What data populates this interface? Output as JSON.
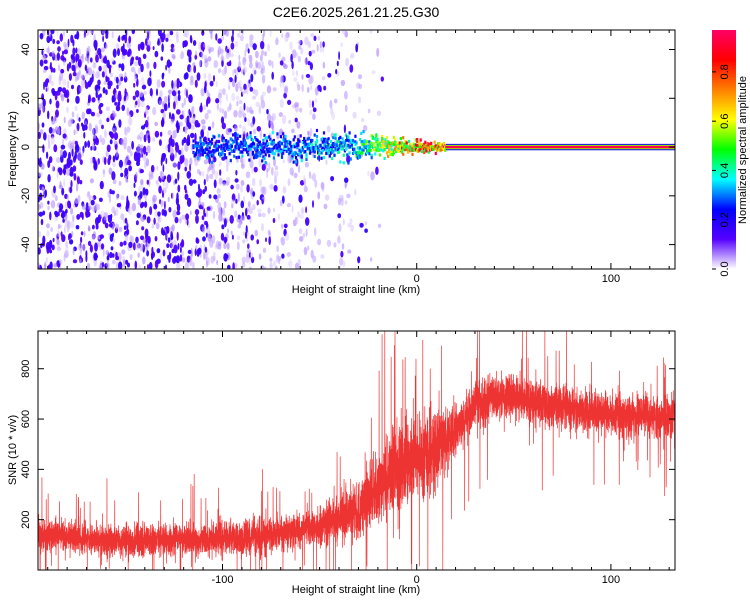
{
  "figure_title": "C2E6.2025.261.21.25.G30",
  "chart_data": [
    {
      "type": "heatmap",
      "title": "C2E6.2025.261.21.25.G30",
      "xlabel": "Height of straight line (km)",
      "ylabel": "Frequency (Hz)",
      "xlim": [
        -195,
        133
      ],
      "ylim": [
        -50,
        48
      ],
      "xticks": [
        -100,
        0,
        100
      ],
      "yticks": [
        -40,
        -20,
        0,
        20,
        40
      ],
      "colorbar": {
        "label": "Normalized spectral amplitude",
        "range": [
          0,
          0.97
        ],
        "ticks": [
          0.0,
          0.2,
          0.4,
          0.6,
          0.8
        ],
        "colormap": [
          "#ffffff",
          "#5500ff",
          "#0000ff",
          "#00ffff",
          "#00ff00",
          "#ffff00",
          "#ff8000",
          "#ff0000",
          "#ff0066"
        ]
      },
      "features": {
        "scatter_region_x": [
          -195,
          -30
        ],
        "scatter_density": "high for x < -110, fading toward -30",
        "core_band": {
          "x_start": -115,
          "x_end": 133,
          "frequency": 0
        },
        "signal_amplitude_by_height": [
          {
            "x": -110,
            "amp": 0.3
          },
          {
            "x": -60,
            "amp": 0.35
          },
          {
            "x": -30,
            "amp": 0.45
          },
          {
            "x": -10,
            "amp": 0.75
          },
          {
            "x": 15,
            "amp": 0.95
          },
          {
            "x": 133,
            "amp": 0.97
          }
        ]
      }
    },
    {
      "type": "line",
      "xlabel": "Height of straight line (km)",
      "ylabel": "SNR (10 * v/v)",
      "xlim": [
        -195,
        133
      ],
      "ylim": [
        0,
        950
      ],
      "xticks": [
        -100,
        0,
        100
      ],
      "yticks": [
        200,
        400,
        600,
        800
      ],
      "series": [
        {
          "name": "SNR",
          "color": "#ee3333",
          "mean_profile": [
            {
              "x": -195,
              "y": 140
            },
            {
              "x": -150,
              "y": 115
            },
            {
              "x": -110,
              "y": 120
            },
            {
              "x": -80,
              "y": 135
            },
            {
              "x": -50,
              "y": 170
            },
            {
              "x": -30,
              "y": 240
            },
            {
              "x": -20,
              "y": 330
            },
            {
              "x": -10,
              "y": 400
            },
            {
              "x": 0,
              "y": 440
            },
            {
              "x": 10,
              "y": 470
            },
            {
              "x": 20,
              "y": 560
            },
            {
              "x": 30,
              "y": 660
            },
            {
              "x": 45,
              "y": 700
            },
            {
              "x": 70,
              "y": 650
            },
            {
              "x": 100,
              "y": 620
            },
            {
              "x": 133,
              "y": 605
            }
          ],
          "noise_profile": [
            {
              "x": -195,
              "y": 55
            },
            {
              "x": -50,
              "y": 65
            },
            {
              "x": -30,
              "y": 110
            },
            {
              "x": -15,
              "y": 150
            },
            {
              "x": 10,
              "y": 150
            },
            {
              "x": 25,
              "y": 80
            },
            {
              "x": 133,
              "y": 75
            }
          ]
        }
      ]
    }
  ]
}
